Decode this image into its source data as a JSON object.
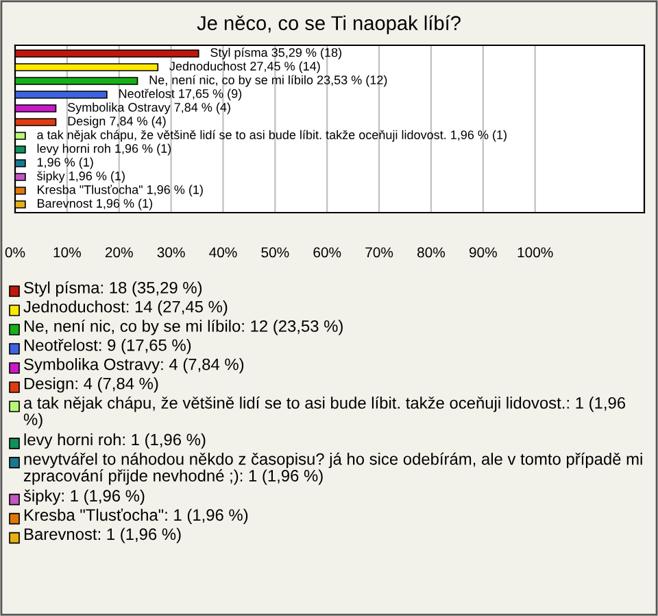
{
  "chart_data": {
    "type": "bar",
    "orientation": "horizontal",
    "title": "Je něco, co se Ti naopak líbí?",
    "categories": [
      null,
      null,
      null,
      null,
      null,
      null,
      null,
      null,
      null,
      null,
      null,
      null
    ],
    "values": [
      35.29,
      27.45,
      23.53,
      17.65,
      7.84,
      7.84,
      1.96,
      1.96,
      1.96,
      1.96,
      1.96,
      1.96
    ],
    "colors": [
      "#c0160c",
      "#ffe800",
      "#18b018",
      "#3c64e0",
      "#c818c8",
      "#e03c10",
      "#b8f878",
      "#10905a",
      "#187890",
      "#c058c0",
      "#e07808",
      "#e8b010"
    ],
    "value_labels": [
      "Styl písma 35,29 % (18)",
      "Jednoduchost 27,45 % (14)",
      "Ne, není nic, co by se mi líbilo 23,53 % (12)",
      "Neotřelost 17,65 % (9)",
      "Symbolika Ostravy 7,84 % (4)",
      "Design 7,84 % (4)",
      "a tak nějak chápu, že většině lidí se to asi bude líbit. takže oceňuji lidovost. 1,96 % (1)",
      "levy horni roh 1,96 % (1)",
      "1,96 % (1)",
      "šipky 1,96 % (1)",
      "Kresba \"Tlusťocha\" 1,96 % (1)",
      "Barevnost 1,96 % (1)"
    ],
    "xlim": [
      0,
      121
    ],
    "xticks": [
      {
        "value": 0,
        "label": "0%"
      },
      {
        "value": 10,
        "label": "10%"
      },
      {
        "value": 20,
        "label": "20%"
      },
      {
        "value": 30,
        "label": "30%"
      },
      {
        "value": 40,
        "label": "40%"
      },
      {
        "value": 50,
        "label": "50%"
      },
      {
        "value": 60,
        "label": "60%"
      },
      {
        "value": 70,
        "label": "70%"
      },
      {
        "value": 80,
        "label": "80%"
      },
      {
        "value": 90,
        "label": "90%"
      },
      {
        "value": 100,
        "label": "100%"
      }
    ],
    "grid": "x",
    "annotations": [
      "Styl písma: 18 (35,29 %)",
      "Jednoduchost: 14 (27,45 %)",
      "Ne, není nic, co by se mi líbilo: 12 (23,53 %)",
      "Neotřelost: 9 (17,65 %)",
      "Symbolika Ostravy: 4 (7,84 %)",
      "Design: 4 (7,84 %)",
      "a tak nějak chápu, že většině lidí se to asi bude líbit. takže oceňuji lidovost.: 1 (1,96 %)",
      "levy horni roh: 1 (1,96 %)",
      "nevytvářel to náhodou někdo z časopisu? já ho sice odebírám, ale v tomto případě mi zpracování přijde nevhodné ;): 1 (1,96 %)",
      "šipky: 1 (1,96 %)",
      "Kresba \"Tlusťocha\": 1 (1,96 %)",
      "Barevnost: 1 (1,96 %)"
    ]
  }
}
